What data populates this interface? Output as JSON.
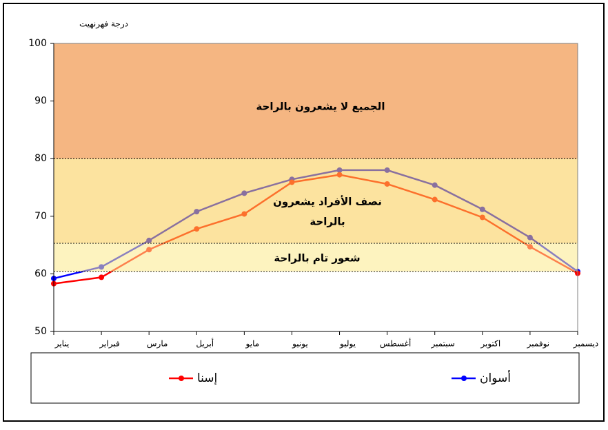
{
  "chart_data": {
    "type": "line",
    "y_axis_label": "درجة فهرنهيت",
    "categories": [
      "يناير",
      "فبراير",
      "مارس",
      "أبريل",
      "مايو",
      "يونيو",
      "يوليو",
      "أغسطس",
      "سبتمبر",
      "اكتوبر",
      "نوفمبر",
      "ديسمبر"
    ],
    "series": [
      {
        "name": "أسوان",
        "color": "#0000ff",
        "values": [
          59.2,
          61.2,
          65.8,
          70.8,
          74.0,
          76.4,
          78.0,
          78.0,
          75.4,
          71.2,
          66.3,
          60.4
        ]
      },
      {
        "name": "إسنا",
        "color": "#ff0000",
        "values": [
          58.3,
          59.4,
          64.2,
          67.8,
          70.4,
          75.9,
          77.2,
          75.6,
          72.9,
          69.8,
          64.7,
          60.1
        ]
      }
    ],
    "bands": [
      {
        "from": 80,
        "to": 100,
        "color": "#ec7a1c",
        "label_lines": [
          "الجميع لا يشعرون بالراحة"
        ]
      },
      {
        "from": 65.3,
        "to": 80,
        "color": "#f9cc50",
        "label_lines": [
          "نصف الأفراد يشعرون",
          "بالراحة"
        ]
      },
      {
        "from": 60.4,
        "to": 65.3,
        "color": "#fbea8a",
        "label_lines": [
          "شعور تام بالراحة"
        ]
      }
    ],
    "ylim": [
      50,
      100
    ],
    "yticks": [
      50,
      60,
      70,
      80,
      90,
      100
    ]
  }
}
